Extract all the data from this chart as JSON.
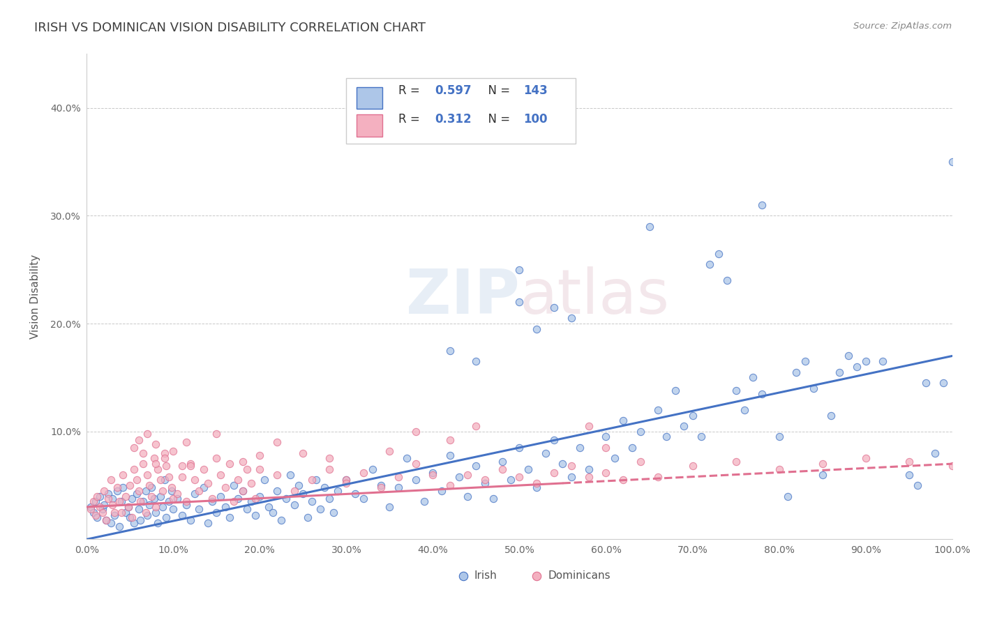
{
  "title": "IRISH VS DOMINICAN VISION DISABILITY CORRELATION CHART",
  "source": "Source: ZipAtlas.com",
  "ylabel": "Vision Disability",
  "irish_R": 0.597,
  "irish_N": 143,
  "dominican_R": 0.312,
  "dominican_N": 100,
  "irish_color": "#adc6e8",
  "dominican_color": "#f4b0c0",
  "irish_line_color": "#4472c4",
  "dominican_line_color": "#e07090",
  "title_color": "#404040",
  "legend_value_color": "#4472c4",
  "background_color": "#ffffff",
  "grid_color": "#c8c8c8",
  "xlim": [
    0.0,
    1.0
  ],
  "ylim": [
    0.0,
    0.45
  ],
  "xticks": [
    0.0,
    0.1,
    0.2,
    0.3,
    0.4,
    0.5,
    0.6,
    0.7,
    0.8,
    0.9,
    1.0
  ],
  "xtick_labels": [
    "0.0%",
    "10.0%",
    "20.0%",
    "30.0%",
    "40.0%",
    "50.0%",
    "60.0%",
    "70.0%",
    "80.0%",
    "90.0%",
    "100.0%"
  ],
  "yticks": [
    0.0,
    0.1,
    0.2,
    0.3,
    0.4
  ],
  "ytick_labels": [
    "",
    "10.0%",
    "20.0%",
    "30.0%",
    "40.0%"
  ],
  "watermark": "ZIPAtlas",
  "irish_line_start_y": 0.0,
  "irish_line_end_y": 0.17,
  "dominican_line_start_y": 0.03,
  "dominican_line_end_y": 0.07
}
